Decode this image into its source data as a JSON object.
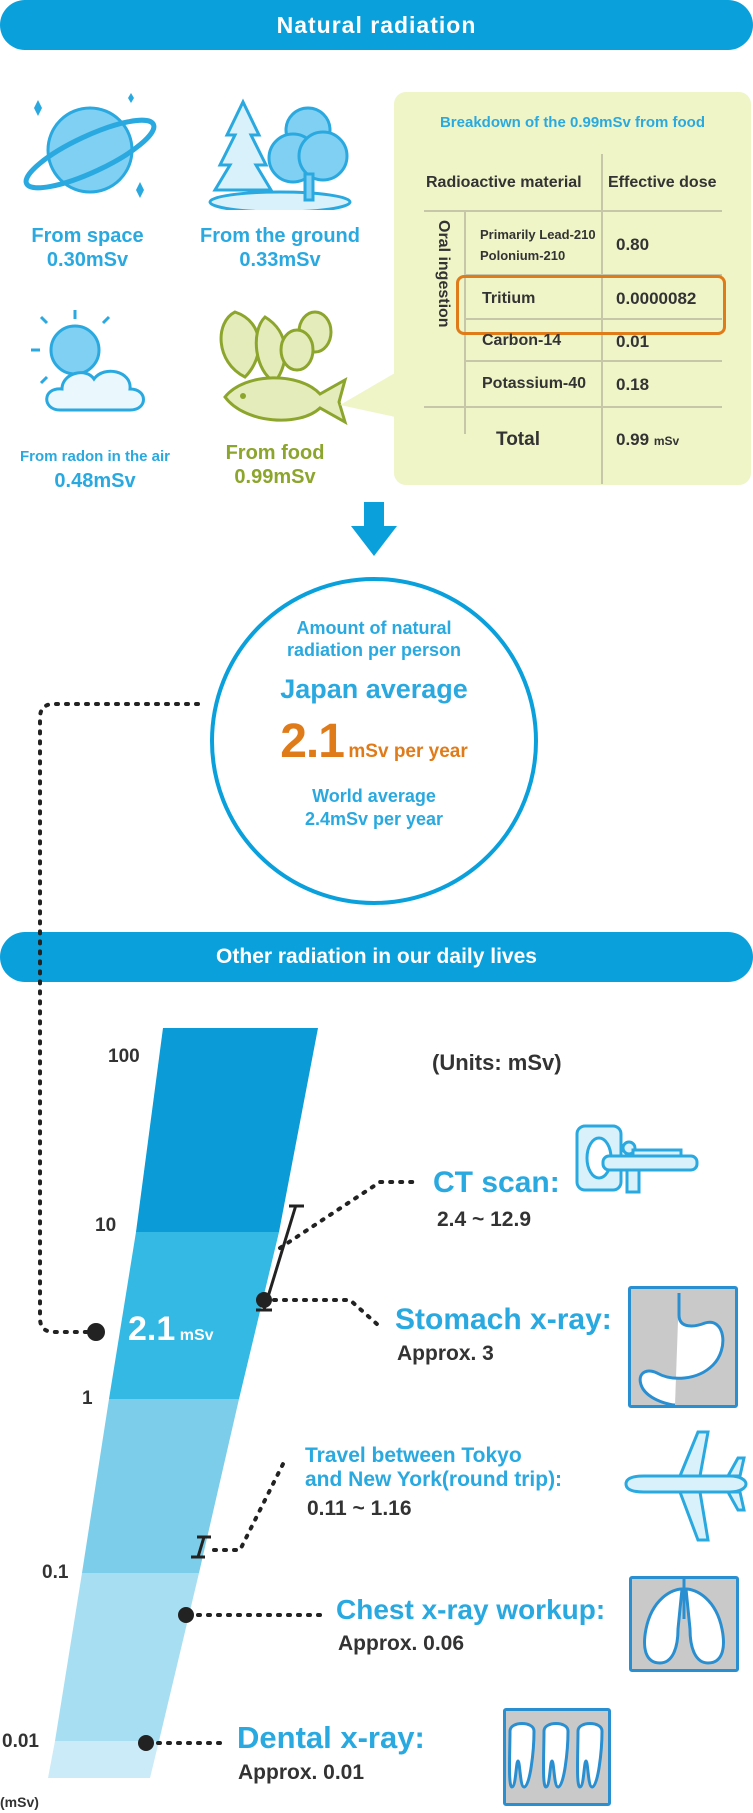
{
  "banner_top": "Natural radiation",
  "sources": [
    {
      "label": "From space",
      "value": "0.30mSv"
    },
    {
      "label": "From the ground",
      "value": "0.33mSv"
    },
    {
      "label": "From radon in the air",
      "value": "0.48mSv"
    },
    {
      "label": "From food",
      "value": "0.99mSv"
    }
  ],
  "breakdown": {
    "title": "Breakdown of the 0.99mSv from food",
    "header": [
      "Radioactive material",
      "Effective dose"
    ],
    "group_label": "Oral ingestion",
    "rows": [
      {
        "material": "Primarily Lead-210",
        "material2": "Polonium-210",
        "dose": "0.80"
      },
      {
        "material": "Tritium",
        "dose": "0.0000082"
      },
      {
        "material": "Carbon-14",
        "dose": "0.01"
      },
      {
        "material": "Potassium-40",
        "dose": "0.18"
      }
    ],
    "total_label": "Total",
    "total_value": "0.99",
    "total_unit": "mSv"
  },
  "summary": {
    "line1": "Amount of natural",
    "line2": "radiation per person",
    "japan_label": "Japan average",
    "japan_value": "2.1",
    "japan_unit": "mSv per year",
    "world_line1": "World average",
    "world_line2": "2.4mSv per year"
  },
  "banner_bottom": "Other radiation in our daily lives",
  "scale": {
    "ticks": [
      "100",
      "10",
      "1",
      "0.1",
      "0.01"
    ],
    "axis_unit": "(mSv)",
    "marker_value": "2.1",
    "marker_unit": "mSv",
    "units_note": "(Units: mSv)"
  },
  "items": [
    {
      "title": "CT scan:",
      "value": "2.4 ~ 12.9"
    },
    {
      "title": "Stomach x-ray:",
      "value": "Approx. 3"
    },
    {
      "title": "Travel between Tokyo",
      "title2": "and New York(round trip):",
      "value": "0.11 ~ 1.16"
    },
    {
      "title": "Chest x-ray workup:",
      "value": "Approx. 0.06"
    },
    {
      "title": "Dental x-ray:",
      "value": "Approx. 0.01"
    }
  ],
  "colors": {
    "accent": "#0aa0dc",
    "orange": "#e07b1a",
    "food_green": "#8ca52c",
    "panel": "#f0f5c8"
  }
}
